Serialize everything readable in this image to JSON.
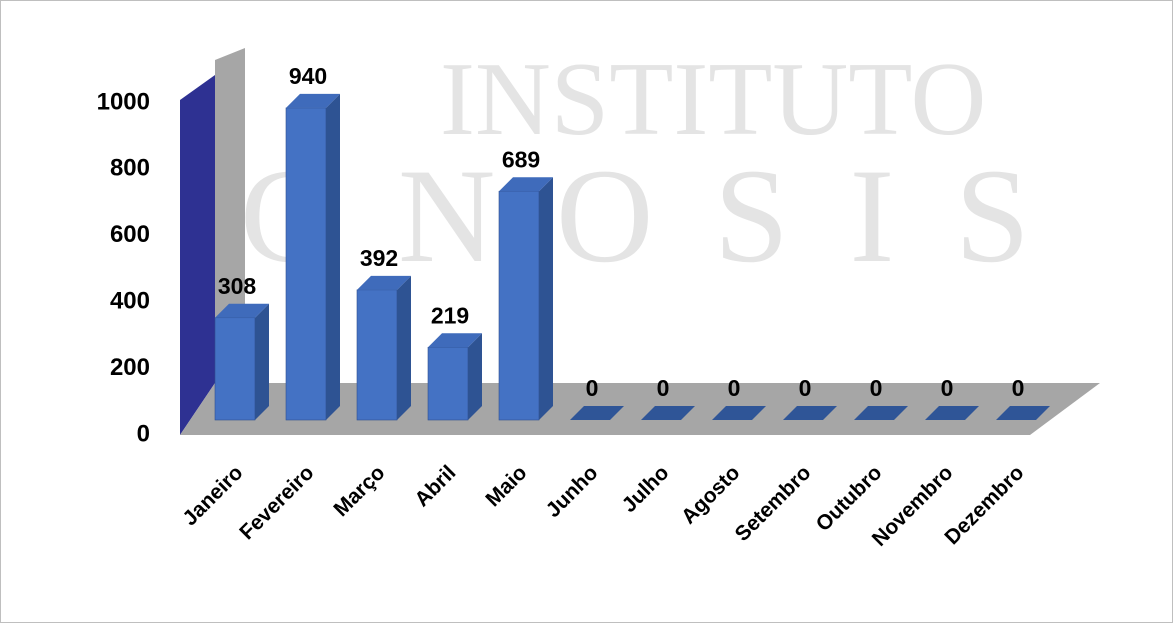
{
  "chart_data": {
    "type": "bar3d",
    "watermark": [
      "INSTITUTO",
      "GNOSIS"
    ],
    "categories": [
      "Janeiro",
      "Fevereiro",
      "Março",
      "Abril",
      "Maio",
      "Junho",
      "Julho",
      "Agosto",
      "Setembro",
      "Outubro",
      "Novembro",
      "Dezembro"
    ],
    "values": [
      308,
      940,
      392,
      219,
      689,
      0,
      0,
      0,
      0,
      0,
      0,
      0
    ],
    "color": "#4472c4",
    "ylim": [
      0,
      1000
    ],
    "yticks": [
      0,
      200,
      400,
      600,
      800,
      1000
    ],
    "grid": false
  }
}
